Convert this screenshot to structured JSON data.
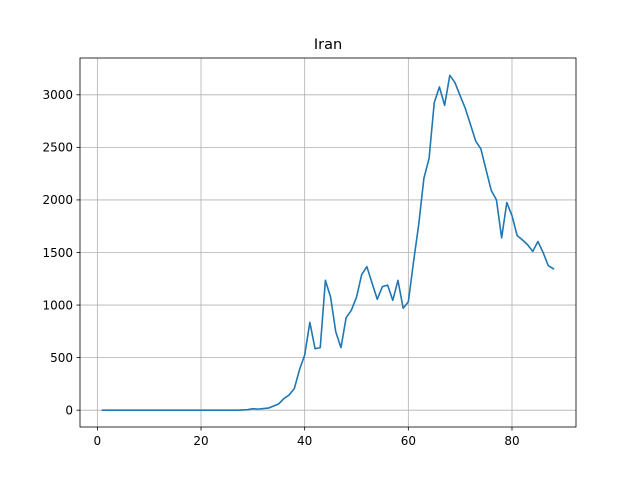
{
  "chart_data": {
    "type": "line",
    "title": "Iran",
    "xlabel": "",
    "ylabel": "",
    "xlim": [
      -3.35,
      92.35
    ],
    "ylim": [
      -160,
      3350
    ],
    "xticks": [
      0,
      20,
      40,
      60,
      80
    ],
    "yticks": [
      0,
      500,
      1000,
      1500,
      2000,
      2500,
      3000
    ],
    "grid": true,
    "legend": "none",
    "color": "#1f77b4",
    "series": [
      {
        "x": [
          1,
          2,
          3,
          4,
          5,
          6,
          7,
          8,
          9,
          10,
          11,
          12,
          13,
          14,
          15,
          16,
          17,
          18,
          19,
          20,
          21,
          22,
          23,
          24,
          25,
          26,
          27,
          28,
          29,
          30,
          31,
          32,
          33,
          34,
          35,
          36,
          37,
          38,
          39,
          40,
          41,
          42,
          43,
          44,
          45,
          46,
          47,
          48,
          49,
          50,
          51,
          52,
          53,
          54,
          55,
          56,
          57,
          58,
          59,
          60,
          61,
          62,
          63,
          64,
          65,
          66,
          67,
          68,
          69,
          70,
          71,
          72,
          73,
          74,
          75,
          76,
          77,
          78,
          79,
          80,
          81,
          82,
          83,
          84,
          85,
          86,
          87,
          88
        ],
        "values": [
          0,
          0,
          0,
          0,
          0,
          0,
          0,
          0,
          0,
          0,
          0,
          0,
          0,
          0,
          0,
          0,
          0,
          0,
          0,
          0,
          0,
          0,
          0,
          0,
          0,
          0,
          0,
          2,
          5,
          14,
          10,
          15,
          20,
          40,
          60,
          110,
          145,
          205,
          385,
          525,
          835,
          585,
          595,
          1235,
          1075,
          745,
          595,
          880,
          950,
          1075,
          1290,
          1365,
          1210,
          1055,
          1175,
          1190,
          1045,
          1235,
          970,
          1030,
          1410,
          1765,
          2205,
          2395,
          2925,
          3075,
          2900,
          3185,
          3115,
          2990,
          2870,
          2715,
          2560,
          2485,
          2285,
          2090,
          2000,
          1640,
          1975,
          1850,
          1660,
          1620,
          1575,
          1510,
          1605,
          1500,
          1375,
          1345
        ]
      }
    ]
  }
}
